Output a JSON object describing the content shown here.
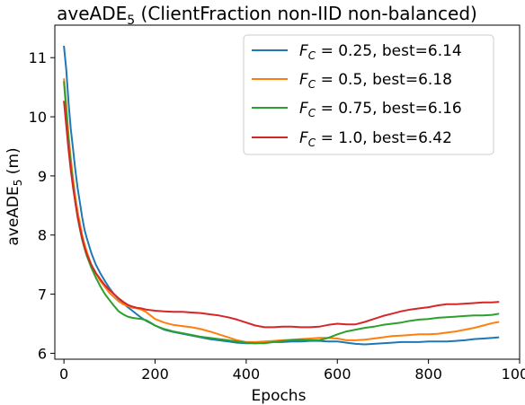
{
  "chart_data": {
    "type": "line",
    "title": {
      "main": "aveADE",
      "sub": "5",
      "rest": " (ClientFraction non-IID non-balanced)"
    },
    "xlabel": "Epochs",
    "ylabel": {
      "main": "aveADE",
      "sub": "5",
      "rest": " (m)"
    },
    "xlim": [
      -20,
      1000
    ],
    "ylim": [
      5.9,
      11.55
    ],
    "xticks": [
      0,
      200,
      400,
      600,
      800,
      1000
    ],
    "yticks": [
      6,
      7,
      8,
      9,
      10,
      11
    ],
    "grid": false,
    "legend_position": "top-right",
    "series": [
      {
        "name": {
          "symbol": "F",
          "sub": "C",
          "rest": " = 0.25, best=6.14"
        },
        "color": "#1f77b4",
        "points": [
          [
            0,
            11.2
          ],
          [
            5,
            10.8
          ],
          [
            10,
            10.25
          ],
          [
            15,
            9.8
          ],
          [
            20,
            9.45
          ],
          [
            25,
            9.1
          ],
          [
            30,
            8.8
          ],
          [
            35,
            8.55
          ],
          [
            40,
            8.3
          ],
          [
            45,
            8.1
          ],
          [
            50,
            7.95
          ],
          [
            60,
            7.7
          ],
          [
            70,
            7.5
          ],
          [
            80,
            7.35
          ],
          [
            90,
            7.22
          ],
          [
            100,
            7.1
          ],
          [
            110,
            7.0
          ],
          [
            120,
            6.92
          ],
          [
            130,
            6.85
          ],
          [
            140,
            6.78
          ],
          [
            150,
            6.72
          ],
          [
            160,
            6.66
          ],
          [
            170,
            6.6
          ],
          [
            180,
            6.55
          ],
          [
            190,
            6.51
          ],
          [
            200,
            6.47
          ],
          [
            220,
            6.4
          ],
          [
            240,
            6.36
          ],
          [
            260,
            6.33
          ],
          [
            280,
            6.3
          ],
          [
            300,
            6.27
          ],
          [
            320,
            6.24
          ],
          [
            340,
            6.22
          ],
          [
            360,
            6.2
          ],
          [
            380,
            6.18
          ],
          [
            400,
            6.17
          ],
          [
            420,
            6.17
          ],
          [
            440,
            6.18
          ],
          [
            460,
            6.19
          ],
          [
            480,
            6.19
          ],
          [
            500,
            6.2
          ],
          [
            520,
            6.2
          ],
          [
            540,
            6.21
          ],
          [
            560,
            6.21
          ],
          [
            580,
            6.2
          ],
          [
            600,
            6.2
          ],
          [
            620,
            6.18
          ],
          [
            640,
            6.16
          ],
          [
            660,
            6.15
          ],
          [
            680,
            6.16
          ],
          [
            700,
            6.17
          ],
          [
            720,
            6.18
          ],
          [
            740,
            6.19
          ],
          [
            760,
            6.19
          ],
          [
            780,
            6.19
          ],
          [
            800,
            6.2
          ],
          [
            820,
            6.2
          ],
          [
            840,
            6.2
          ],
          [
            860,
            6.21
          ],
          [
            880,
            6.22
          ],
          [
            900,
            6.24
          ],
          [
            920,
            6.25
          ],
          [
            940,
            6.26
          ],
          [
            955,
            6.27
          ]
        ]
      },
      {
        "name": {
          "symbol": "F",
          "sub": "C",
          "rest": " = 0.5, best=6.18"
        },
        "color": "#ff7f0e",
        "points": [
          [
            0,
            10.65
          ],
          [
            5,
            10.2
          ],
          [
            10,
            9.7
          ],
          [
            15,
            9.3
          ],
          [
            20,
            8.95
          ],
          [
            25,
            8.65
          ],
          [
            30,
            8.4
          ],
          [
            35,
            8.2
          ],
          [
            40,
            8.0
          ],
          [
            45,
            7.85
          ],
          [
            50,
            7.72
          ],
          [
            60,
            7.5
          ],
          [
            70,
            7.35
          ],
          [
            80,
            7.22
          ],
          [
            90,
            7.12
          ],
          [
            100,
            7.02
          ],
          [
            110,
            6.95
          ],
          [
            120,
            6.88
          ],
          [
            130,
            6.83
          ],
          [
            140,
            6.8
          ],
          [
            150,
            6.77
          ],
          [
            160,
            6.76
          ],
          [
            170,
            6.74
          ],
          [
            180,
            6.7
          ],
          [
            190,
            6.64
          ],
          [
            200,
            6.58
          ],
          [
            220,
            6.52
          ],
          [
            240,
            6.48
          ],
          [
            260,
            6.46
          ],
          [
            280,
            6.44
          ],
          [
            300,
            6.41
          ],
          [
            320,
            6.37
          ],
          [
            340,
            6.32
          ],
          [
            360,
            6.27
          ],
          [
            380,
            6.22
          ],
          [
            400,
            6.19
          ],
          [
            420,
            6.19
          ],
          [
            440,
            6.2
          ],
          [
            460,
            6.21
          ],
          [
            480,
            6.22
          ],
          [
            500,
            6.23
          ],
          [
            520,
            6.24
          ],
          [
            540,
            6.25
          ],
          [
            560,
            6.26
          ],
          [
            580,
            6.26
          ],
          [
            600,
            6.25
          ],
          [
            620,
            6.22
          ],
          [
            640,
            6.22
          ],
          [
            660,
            6.23
          ],
          [
            680,
            6.25
          ],
          [
            700,
            6.27
          ],
          [
            720,
            6.29
          ],
          [
            740,
            6.3
          ],
          [
            760,
            6.31
          ],
          [
            780,
            6.32
          ],
          [
            800,
            6.32
          ],
          [
            820,
            6.33
          ],
          [
            840,
            6.35
          ],
          [
            860,
            6.37
          ],
          [
            880,
            6.4
          ],
          [
            900,
            6.43
          ],
          [
            920,
            6.47
          ],
          [
            940,
            6.51
          ],
          [
            955,
            6.53
          ]
        ]
      },
      {
        "name": {
          "symbol": "F",
          "sub": "C",
          "rest": " = 0.75, best=6.16"
        },
        "color": "#2ca02c",
        "points": [
          [
            0,
            10.6
          ],
          [
            5,
            10.1
          ],
          [
            10,
            9.6
          ],
          [
            15,
            9.2
          ],
          [
            20,
            8.85
          ],
          [
            25,
            8.55
          ],
          [
            30,
            8.3
          ],
          [
            35,
            8.1
          ],
          [
            40,
            7.92
          ],
          [
            45,
            7.78
          ],
          [
            50,
            7.65
          ],
          [
            60,
            7.45
          ],
          [
            70,
            7.28
          ],
          [
            80,
            7.13
          ],
          [
            90,
            7.0
          ],
          [
            100,
            6.9
          ],
          [
            110,
            6.8
          ],
          [
            120,
            6.71
          ],
          [
            130,
            6.66
          ],
          [
            140,
            6.62
          ],
          [
            150,
            6.6
          ],
          [
            160,
            6.59
          ],
          [
            170,
            6.58
          ],
          [
            180,
            6.56
          ],
          [
            190,
            6.52
          ],
          [
            200,
            6.47
          ],
          [
            220,
            6.41
          ],
          [
            240,
            6.37
          ],
          [
            260,
            6.34
          ],
          [
            280,
            6.31
          ],
          [
            300,
            6.28
          ],
          [
            320,
            6.26
          ],
          [
            340,
            6.24
          ],
          [
            360,
            6.22
          ],
          [
            380,
            6.2
          ],
          [
            400,
            6.18
          ],
          [
            420,
            6.17
          ],
          [
            440,
            6.17
          ],
          [
            460,
            6.19
          ],
          [
            480,
            6.21
          ],
          [
            500,
            6.22
          ],
          [
            520,
            6.23
          ],
          [
            540,
            6.22
          ],
          [
            560,
            6.22
          ],
          [
            580,
            6.26
          ],
          [
            600,
            6.32
          ],
          [
            620,
            6.37
          ],
          [
            640,
            6.4
          ],
          [
            660,
            6.43
          ],
          [
            680,
            6.45
          ],
          [
            700,
            6.48
          ],
          [
            720,
            6.5
          ],
          [
            740,
            6.52
          ],
          [
            760,
            6.55
          ],
          [
            780,
            6.57
          ],
          [
            800,
            6.58
          ],
          [
            820,
            6.6
          ],
          [
            840,
            6.61
          ],
          [
            860,
            6.62
          ],
          [
            880,
            6.63
          ],
          [
            900,
            6.64
          ],
          [
            920,
            6.64
          ],
          [
            940,
            6.65
          ],
          [
            955,
            6.67
          ]
        ]
      },
      {
        "name": {
          "symbol": "F",
          "sub": "C",
          "rest": " = 1.0, best=6.42"
        },
        "color": "#d62728",
        "points": [
          [
            0,
            10.27
          ],
          [
            5,
            9.85
          ],
          [
            10,
            9.45
          ],
          [
            15,
            9.1
          ],
          [
            20,
            8.8
          ],
          [
            25,
            8.55
          ],
          [
            30,
            8.32
          ],
          [
            35,
            8.12
          ],
          [
            40,
            7.95
          ],
          [
            45,
            7.8
          ],
          [
            50,
            7.68
          ],
          [
            60,
            7.5
          ],
          [
            70,
            7.36
          ],
          [
            80,
            7.25
          ],
          [
            90,
            7.15
          ],
          [
            100,
            7.07
          ],
          [
            110,
            7.0
          ],
          [
            120,
            6.93
          ],
          [
            130,
            6.87
          ],
          [
            140,
            6.82
          ],
          [
            150,
            6.79
          ],
          [
            160,
            6.77
          ],
          [
            170,
            6.76
          ],
          [
            180,
            6.74
          ],
          [
            190,
            6.73
          ],
          [
            200,
            6.72
          ],
          [
            220,
            6.71
          ],
          [
            240,
            6.7
          ],
          [
            260,
            6.7
          ],
          [
            280,
            6.69
          ],
          [
            300,
            6.68
          ],
          [
            320,
            6.66
          ],
          [
            340,
            6.64
          ],
          [
            360,
            6.61
          ],
          [
            380,
            6.57
          ],
          [
            400,
            6.52
          ],
          [
            420,
            6.47
          ],
          [
            440,
            6.44
          ],
          [
            460,
            6.44
          ],
          [
            480,
            6.45
          ],
          [
            500,
            6.45
          ],
          [
            520,
            6.44
          ],
          [
            540,
            6.44
          ],
          [
            560,
            6.45
          ],
          [
            580,
            6.48
          ],
          [
            600,
            6.5
          ],
          [
            620,
            6.49
          ],
          [
            640,
            6.49
          ],
          [
            660,
            6.53
          ],
          [
            680,
            6.58
          ],
          [
            700,
            6.63
          ],
          [
            720,
            6.67
          ],
          [
            740,
            6.71
          ],
          [
            760,
            6.74
          ],
          [
            780,
            6.76
          ],
          [
            800,
            6.78
          ],
          [
            820,
            6.81
          ],
          [
            840,
            6.83
          ],
          [
            860,
            6.83
          ],
          [
            880,
            6.84
          ],
          [
            900,
            6.85
          ],
          [
            920,
            6.86
          ],
          [
            940,
            6.86
          ],
          [
            955,
            6.87
          ]
        ]
      }
    ]
  }
}
